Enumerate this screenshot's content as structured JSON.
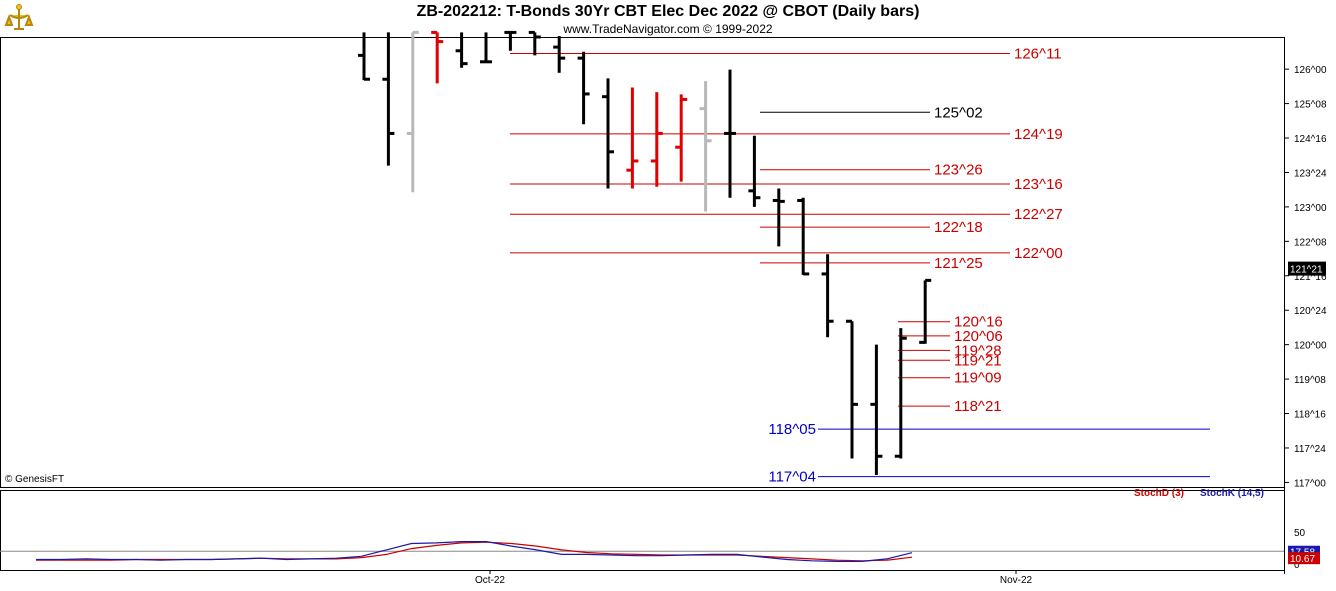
{
  "window": {
    "title": "ZB-202212:  T-Bonds 30Yr CBT Elec Dec 2022 @ CBOT  (Daily bars)",
    "subtitle": "www.TradeNavigator.com © 1999-2022",
    "copyright": "© GenesisFT"
  },
  "colors": {
    "up": "#000000",
    "down": "#e00000",
    "neutral": "#b8b8b8",
    "level_red": "#cc0000",
    "level_blue": "#0000cc",
    "stoch_k": "#1a1aaa",
    "stoch_d": "#cc0000"
  },
  "chart_data": [
    {
      "type": "ohlc",
      "title": "ZB-202212:  T-Bonds 30Yr CBT Elec Dec 2022 @ CBOT  (Daily bars)",
      "y_axis": {
        "ticks": [
          "126^00",
          "125^08",
          "124^16",
          "123^24",
          "123^00",
          "122^08",
          "121^16",
          "120^24",
          "120^00",
          "119^08",
          "118^16",
          "117^24",
          "117^00"
        ],
        "ylim": [
          116.9,
          126.7
        ]
      },
      "x_axis": {
        "ticks": [
          "Oct-22",
          "Nov-22"
        ]
      },
      "last_price": "121^21",
      "bars": [
        {
          "o": 126.3,
          "h": 126.8,
          "l": 125.76,
          "c": 125.78,
          "color": "up"
        },
        {
          "o": 125.78,
          "h": 126.8,
          "l": 123.9,
          "c": 124.6,
          "color": "up"
        },
        {
          "o": 124.6,
          "h": 126.8,
          "l": 123.32,
          "c": 126.8,
          "color": "neutral"
        },
        {
          "o": 126.8,
          "h": 126.8,
          "l": 125.69,
          "c": 126.6,
          "color": "down"
        },
        {
          "o": 126.4,
          "h": 126.8,
          "l": 126.03,
          "c": 126.12,
          "color": "up"
        },
        {
          "o": 126.16,
          "h": 126.8,
          "l": 126.16,
          "c": 126.16,
          "color": "up"
        },
        {
          "o": 126.8,
          "h": 126.8,
          "l": 126.4,
          "c": 126.8,
          "color": "up"
        },
        {
          "o": 126.8,
          "h": 126.8,
          "l": 126.3,
          "c": 126.7,
          "color": "up"
        },
        {
          "o": 126.48,
          "h": 126.72,
          "l": 125.92,
          "c": 126.24,
          "color": "up"
        },
        {
          "o": 126.24,
          "h": 126.38,
          "l": 124.8,
          "c": 125.46,
          "color": "up"
        },
        {
          "o": 125.4,
          "h": 125.8,
          "l": 123.4,
          "c": 124.2,
          "color": "up"
        },
        {
          "o": 123.8,
          "h": 125.6,
          "l": 123.4,
          "c": 124.0,
          "color": "down"
        },
        {
          "o": 124.0,
          "h": 125.5,
          "l": 123.44,
          "c": 124.6,
          "color": "down"
        },
        {
          "o": 124.3,
          "h": 125.45,
          "l": 123.55,
          "c": 125.34,
          "color": "down"
        },
        {
          "o": 125.14,
          "h": 125.74,
          "l": 122.9,
          "c": 124.44,
          "color": "neutral"
        },
        {
          "o": 124.6,
          "h": 125.99,
          "l": 123.2,
          "c": 124.6,
          "color": "up"
        },
        {
          "o": 123.35,
          "h": 124.55,
          "l": 123.0,
          "c": 123.2,
          "color": "up"
        },
        {
          "o": 123.14,
          "h": 123.4,
          "l": 122.14,
          "c": 123.12,
          "color": "up"
        },
        {
          "o": 123.14,
          "h": 123.2,
          "l": 121.52,
          "c": 121.54,
          "color": "up"
        },
        {
          "o": 121.54,
          "h": 121.97,
          "l": 120.16,
          "c": 120.51,
          "color": "up"
        },
        {
          "o": 120.51,
          "h": 120.51,
          "l": 117.52,
          "c": 118.7,
          "color": "up"
        },
        {
          "o": 118.7,
          "h": 120.0,
          "l": 117.16,
          "c": 117.57,
          "color": "up"
        },
        {
          "o": 117.57,
          "h": 120.36,
          "l": 117.52,
          "c": 120.14,
          "color": "up"
        },
        {
          "o": 120.05,
          "h": 121.4,
          "l": 120.02,
          "c": 121.4,
          "color": "up"
        }
      ],
      "levels": [
        {
          "label": "126^11",
          "value": 126.34,
          "color": "red",
          "x0": 0.26,
          "x1": 0.92,
          "lx": 0.92
        },
        {
          "label": "125^02",
          "value": 125.06,
          "color": "black",
          "x0": 0.51,
          "x1": 0.84,
          "lx": 0.84
        },
        {
          "label": "124^19",
          "value": 124.59,
          "color": "red",
          "x0": 0.26,
          "x1": 0.92,
          "lx": 0.92
        },
        {
          "label": "123^26",
          "value": 123.81,
          "color": "red",
          "x0": 0.51,
          "x1": 0.84,
          "lx": 0.84
        },
        {
          "label": "123^16",
          "value": 123.5,
          "color": "red",
          "x0": 0.26,
          "x1": 0.92,
          "lx": 0.92
        },
        {
          "label": "122^27",
          "value": 122.84,
          "color": "red",
          "x0": 0.26,
          "x1": 0.92,
          "lx": 0.92
        },
        {
          "label": "122^18",
          "value": 122.56,
          "color": "red",
          "x0": 0.51,
          "x1": 0.84,
          "lx": 0.84
        },
        {
          "label": "122^00",
          "value": 122.0,
          "color": "red",
          "x0": 0.26,
          "x1": 0.92,
          "lx": 0.92
        },
        {
          "label": "121^25",
          "value": 121.78,
          "color": "red",
          "x0": 0.51,
          "x1": 0.84,
          "lx": 0.84
        },
        {
          "label": "120^16",
          "value": 120.5,
          "color": "red",
          "x0": 0.72,
          "x1": 0.86,
          "lx": 0.86
        },
        {
          "label": "120^06",
          "value": 120.19,
          "color": "red",
          "x0": 0.72,
          "x1": 0.86,
          "lx": 0.86
        },
        {
          "label": "119^28",
          "value": 119.875,
          "color": "red",
          "x0": 0.72,
          "x1": 0.86,
          "lx": 0.86
        },
        {
          "label": "119^21",
          "value": 119.66,
          "color": "red",
          "x0": 0.72,
          "x1": 0.86,
          "lx": 0.86
        },
        {
          "label": "119^09",
          "value": 119.28,
          "color": "red",
          "x0": 0.72,
          "x1": 0.86,
          "lx": 0.86
        },
        {
          "label": "118^21",
          "value": 118.66,
          "color": "red",
          "x0": 0.72,
          "x1": 0.86,
          "lx": 0.86
        },
        {
          "label": "118^05",
          "value": 118.16,
          "color": "blue",
          "x0": 0.64,
          "x1": 1.12,
          "lx": 0.64,
          "anchor": "end"
        },
        {
          "label": "117^04",
          "value": 117.125,
          "color": "blue",
          "x0": 0.64,
          "x1": 1.12,
          "lx": 0.64,
          "anchor": "end"
        }
      ]
    },
    {
      "type": "line",
      "series": [
        {
          "name": "StochD (3)",
          "color": "#cc0000"
        },
        {
          "name": "StochK (14,5)",
          "color": "#1a1aaa"
        }
      ],
      "y_axis": {
        "ticks": [
          "50",
          "0"
        ],
        "ylim": [
          0,
          100
        ]
      },
      "last_values": {
        "StochK (14,5)": "17.58",
        "StochD (3)": "10.67"
      },
      "k_values": [
        7,
        7,
        8,
        7,
        7,
        6,
        7,
        7,
        8,
        9,
        7,
        8,
        9,
        12,
        22,
        32,
        33,
        35,
        35,
        28,
        22,
        15,
        15,
        14,
        13,
        13,
        14,
        15,
        15,
        11,
        7,
        5,
        4,
        4,
        8,
        17.58
      ],
      "d_values": [
        6,
        6,
        6,
        6,
        7,
        7,
        7,
        7,
        8,
        9,
        8,
        8,
        8,
        10,
        15,
        24,
        29,
        33,
        34,
        32,
        28,
        22,
        18,
        16,
        15,
        14,
        14,
        14,
        14,
        12,
        10,
        8,
        6,
        5,
        6,
        10.67
      ]
    }
  ]
}
